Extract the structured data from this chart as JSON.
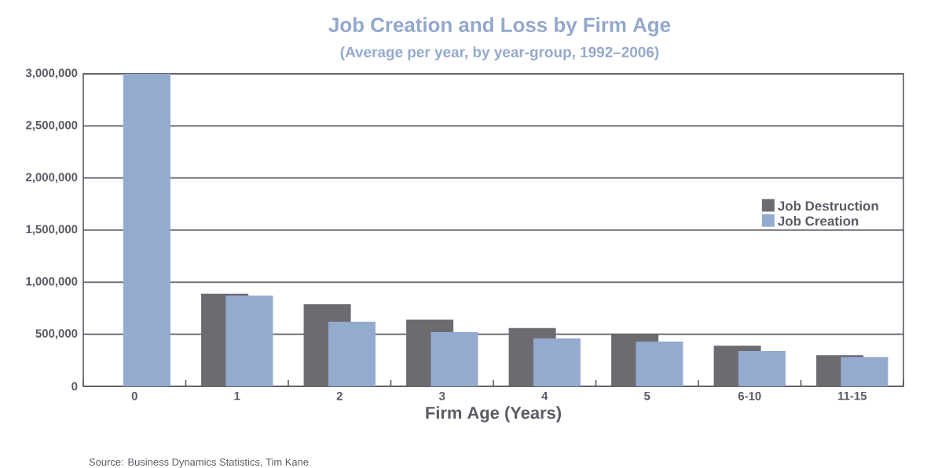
{
  "chart_data": {
    "type": "bar",
    "title": "Job Creation and Loss by Firm Age",
    "subtitle": "(Average per year, by year-group, 1992–2006)",
    "xlabel": "Firm Age (Years)",
    "categories": [
      "0",
      "1",
      "2",
      "3",
      "4",
      "5",
      "6-10",
      "11-15"
    ],
    "series": [
      {
        "name": "Job Destruction",
        "color": "#6d6b70",
        "values": [
          null,
          890000,
          790000,
          640000,
          560000,
          500000,
          390000,
          300000
        ]
      },
      {
        "name": "Job Creation",
        "color": "#94aace",
        "values": [
          3000000,
          870000,
          620000,
          520000,
          460000,
          430000,
          340000,
          280000
        ]
      }
    ],
    "ylim": [
      0,
      3000000
    ],
    "yticks": [
      {
        "value": 0,
        "label": "0"
      },
      {
        "value": 500000,
        "label": "500,000"
      },
      {
        "value": 1000000,
        "label": "1,000,000"
      },
      {
        "value": 1500000,
        "label": "1,500,000"
      },
      {
        "value": 2000000,
        "label": "2,000,000"
      },
      {
        "value": 2500000,
        "label": "2,500,000"
      },
      {
        "value": 3000000,
        "label": "3,000,000"
      }
    ],
    "grid": "y",
    "legend": "right",
    "annotations": [
      "Source: Business Dynamics Statistics, Tim Kane"
    ]
  }
}
